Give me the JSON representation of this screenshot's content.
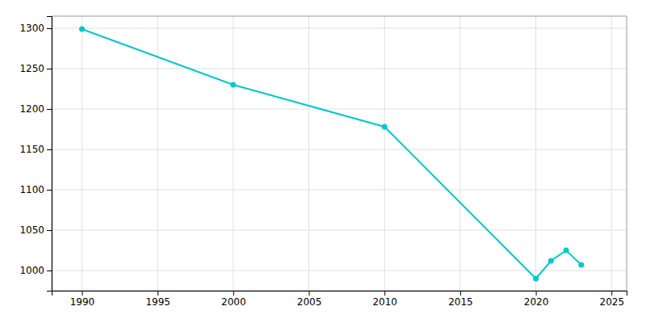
{
  "chart_data": {
    "type": "line",
    "x": [
      1990,
      2000,
      2010,
      2020,
      2021,
      2022,
      2023
    ],
    "values": [
      1299,
      1230,
      1178,
      990,
      1012,
      1025,
      1007
    ],
    "color": "#00C8C8",
    "marker": "circle",
    "xlim": [
      1988,
      2026
    ],
    "ylim": [
      975,
      1315
    ],
    "xticks": [
      1990,
      1995,
      2000,
      2005,
      2010,
      2015,
      2020,
      2025
    ],
    "yticks": [
      1000,
      1050,
      1100,
      1150,
      1200,
      1250,
      1300
    ],
    "grid": true
  }
}
